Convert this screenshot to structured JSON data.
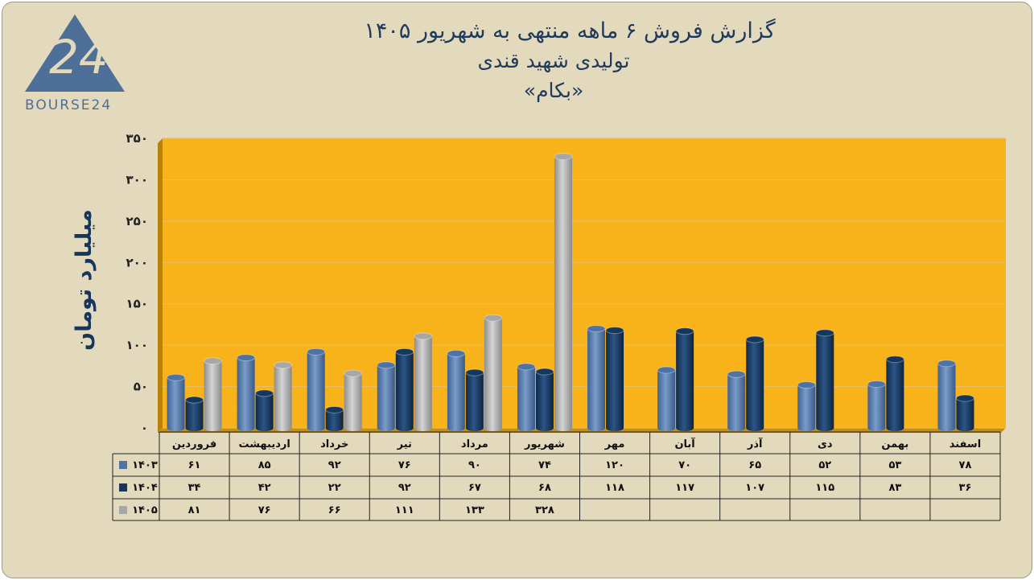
{
  "logo": {
    "text": "BOURSE24",
    "color": "#4d6f98"
  },
  "chart_data": {
    "type": "bar",
    "title_lines": [
      "گزارش  فروش ۶ ماهه منتهی به شهریور ۱۴۰۵",
      "تولیدی شهید قندی",
      "«بکام»"
    ],
    "ylabel": "میلیارد تومان",
    "ylim": [
      0,
      350
    ],
    "yticks": [
      0,
      50,
      100,
      150,
      200,
      250,
      300,
      350
    ],
    "ytick_labels": [
      "۰",
      "۵۰",
      "۱۰۰",
      "۱۵۰",
      "۲۰۰",
      "۲۵۰",
      "۳۰۰",
      "۳۵۰"
    ],
    "grid": true,
    "categories": [
      "فروردین",
      "اردیبهشت",
      "خرداد",
      "تیر",
      "مرداد",
      "شهریور",
      "مهر",
      "آبان",
      "آذر",
      "دی",
      "بهمن",
      "اسفند"
    ],
    "series": [
      {
        "name": "۱۴۰۳",
        "color": "#4f73a6",
        "values": [
          61,
          85,
          92,
          76,
          90,
          74,
          120,
          70,
          65,
          52,
          53,
          78
        ],
        "labels": [
          "۶۱",
          "۸۵",
          "۹۲",
          "۷۶",
          "۹۰",
          "۷۴",
          "۱۲۰",
          "۷۰",
          "۶۵",
          "۵۲",
          "۵۳",
          "۷۸"
        ]
      },
      {
        "name": "۱۴۰۴",
        "color": "#16365c",
        "values": [
          34,
          42,
          22,
          92,
          67,
          68,
          118,
          117,
          107,
          115,
          83,
          36
        ],
        "labels": [
          "۳۴",
          "۴۲",
          "۲۲",
          "۹۲",
          "۶۷",
          "۶۸",
          "۱۱۸",
          "۱۱۷",
          "۱۰۷",
          "۱۱۵",
          "۸۳",
          "۳۶"
        ]
      },
      {
        "name": "۱۴۰۵",
        "color": "#a7a7a7",
        "values": [
          81,
          76,
          66,
          111,
          133,
          328,
          null,
          null,
          null,
          null,
          null,
          null
        ],
        "labels": [
          "۸۱",
          "۷۶",
          "۶۶",
          "۱۱۱",
          "۱۳۳",
          "۳۲۸",
          "",
          "",
          "",
          "",
          "",
          ""
        ]
      }
    ],
    "plot_background": "#f8b21a",
    "legend": "table-below"
  }
}
